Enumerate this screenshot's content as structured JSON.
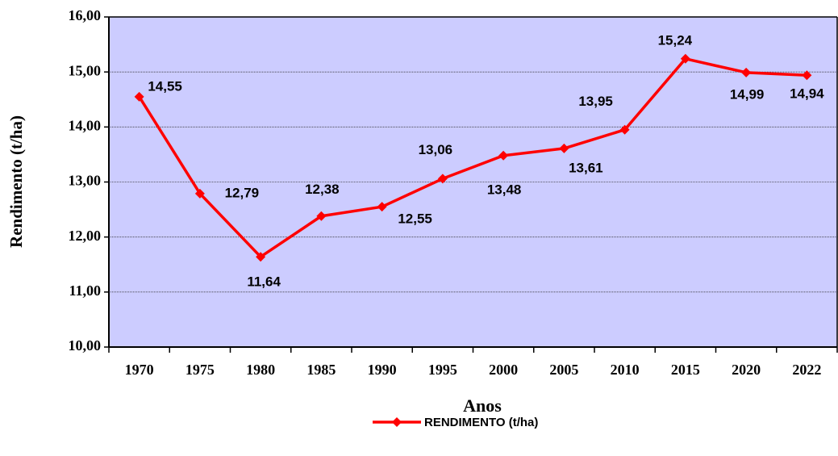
{
  "chart_data": {
    "type": "line",
    "y_axis_label": "Rendimento (t/ha)",
    "x_axis_label": "Anos",
    "categories": [
      "1970",
      "1975",
      "1980",
      "1985",
      "1990",
      "1995",
      "2000",
      "2005",
      "2010",
      "2015",
      "2020",
      "2022"
    ],
    "series": [
      {
        "name": "RENDIMENTO (t/ha)",
        "color": "#ff0000",
        "values": [
          14.55,
          12.79,
          11.64,
          12.38,
          12.55,
          13.06,
          13.48,
          13.61,
          13.95,
          15.24,
          14.99,
          14.94
        ],
        "value_labels": [
          "14,55",
          "12,79",
          "11,64",
          "12,38",
          "12,55",
          "13,06",
          "13,48",
          "13,61",
          "13,95",
          "15,24",
          "14,99",
          "14,94"
        ]
      }
    ],
    "ylim": [
      10,
      16
    ],
    "yticks": [
      {
        "value": 10,
        "label": "10,00"
      },
      {
        "value": 11,
        "label": "11,00"
      },
      {
        "value": 12,
        "label": "12,00"
      },
      {
        "value": 13,
        "label": "13,00"
      },
      {
        "value": 14,
        "label": "14,00"
      },
      {
        "value": 15,
        "label": "15,00"
      },
      {
        "value": 16,
        "label": "16,00"
      }
    ],
    "grid": true,
    "legend": "bottom",
    "plot_background": "#ccccff"
  }
}
